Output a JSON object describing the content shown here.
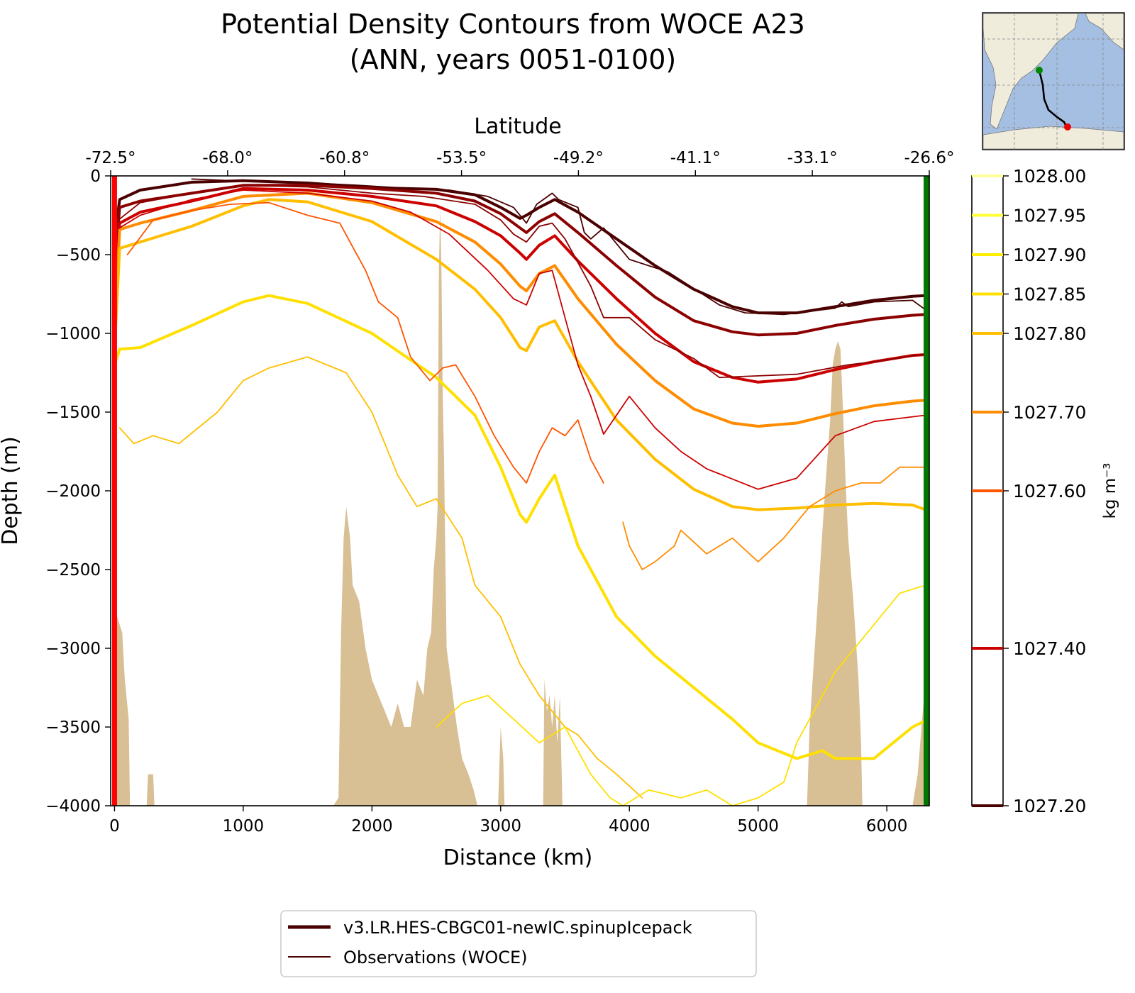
{
  "chart_data": {
    "type": "line",
    "title": "Potential Density Contours from WOCE A23",
    "subtitle": "(ANN, years 0051-0100)",
    "xlabel": "Distance (km)",
    "ylabel": "Depth (m)",
    "top_xlabel": "Latitude",
    "xlim": [
      -30,
      6330
    ],
    "ylim": [
      -4000,
      0
    ],
    "x_ticks": [
      0,
      1000,
      2000,
      3000,
      4000,
      5000,
      6000
    ],
    "y_ticks": [
      0,
      -500,
      -1000,
      -1500,
      -2000,
      -2500,
      -3000,
      -3500,
      -4000
    ],
    "x_tick_labels": [
      "0",
      "1000",
      "2000",
      "3000",
      "4000",
      "5000",
      "6000"
    ],
    "y_tick_labels": [
      "0",
      "−500",
      "−1000",
      "−1500",
      "−2000",
      "−2500",
      "−3000",
      "−3500",
      "−4000"
    ],
    "lat_ticks": [
      {
        "x": 0,
        "label": "-72.5°"
      },
      {
        "x": 900,
        "label": "-68.0°"
      },
      {
        "x": 1800,
        "label": "-60.8°"
      },
      {
        "x": 2700,
        "label": "-53.5°"
      },
      {
        "x": 3600,
        "label": "-49.2°"
      },
      {
        "x": 4500,
        "label": "-41.1°"
      },
      {
        "x": 5400,
        "label": "-33.1°"
      },
      {
        "x": 6300,
        "label": "-26.6°"
      }
    ],
    "colorbar": {
      "unit_label": "kg m⁻³",
      "ticks": [
        {
          "value": 1028.0,
          "label": "1028.00",
          "color": "#ffff99"
        },
        {
          "value": 1027.95,
          "label": "1027.95",
          "color": "#ffff33"
        },
        {
          "value": 1027.9,
          "label": "1027.90",
          "color": "#ffee00"
        },
        {
          "value": 1027.85,
          "label": "1027.85",
          "color": "#ffe000"
        },
        {
          "value": 1027.8,
          "label": "1027.80",
          "color": "#ffbf00"
        },
        {
          "value": 1027.7,
          "label": "1027.70",
          "color": "#ff8c00"
        },
        {
          "value": 1027.6,
          "label": "1027.60",
          "color": "#ff5500"
        },
        {
          "value": 1027.4,
          "label": "1027.40",
          "color": "#cc0000"
        },
        {
          "value": 1027.2,
          "label": "1027.20",
          "color": "#4a0000"
        }
      ]
    },
    "legend": {
      "placement": "bottom-center",
      "entries": [
        {
          "label": "v3.LR.HES-CBGC01-newIC.spinupIcepack",
          "style": "model",
          "color": "#4a0000"
        },
        {
          "label": "Observations (WOCE)",
          "style": "obs",
          "color": "#4a0000"
        }
      ]
    },
    "section_ends": {
      "start_color": "#ff0000",
      "end_color": "#007700"
    },
    "bathymetry": {
      "color": "#d8bf94",
      "x": [
        0,
        60,
        80,
        110,
        120,
        250,
        260,
        300,
        310,
        1700,
        1740,
        1760,
        1780,
        1800,
        1830,
        1850,
        1900,
        1950,
        2000,
        2050,
        2100,
        2150,
        2200,
        2250,
        2300,
        2350,
        2400,
        2430,
        2460,
        2480,
        2500,
        2510,
        2520,
        2530,
        2540,
        2550,
        2560,
        2580,
        2620,
        2660,
        2700,
        2750,
        2790,
        2820,
        2980,
        3000,
        3020,
        3030,
        3330,
        3340,
        3360,
        3380,
        3400,
        3420,
        3440,
        3460,
        3480,
        5380,
        5400,
        5440,
        5480,
        5520,
        5560,
        5580,
        5600,
        5620,
        5640,
        5660,
        5680,
        5700,
        5740,
        5780,
        5800,
        5810,
        6200,
        6240,
        6270,
        6290
      ],
      "y": [
        -2750,
        -2900,
        -3200,
        -3450,
        -4000,
        -4000,
        -3800,
        -3800,
        -4000,
        -4000,
        -3950,
        -2900,
        -2300,
        -2100,
        -2300,
        -2600,
        -2700,
        -3000,
        -3200,
        -3300,
        -3400,
        -3500,
        -3350,
        -3500,
        -3500,
        -3200,
        -3300,
        -3000,
        -2900,
        -2500,
        -2300,
        -2100,
        -600,
        -200,
        -600,
        -1400,
        -1800,
        -3000,
        -3250,
        -3500,
        -3700,
        -3800,
        -3900,
        -4000,
        -4000,
        -3500,
        -3700,
        -4000,
        -4000,
        -3200,
        -3400,
        -3300,
        -3500,
        -3300,
        -3600,
        -3300,
        -4000,
        -4000,
        -3500,
        -3000,
        -2500,
        -2000,
        -1550,
        -1200,
        -1100,
        -1050,
        -1100,
        -1500,
        -1950,
        -2300,
        -2700,
        -3200,
        -3600,
        -4000,
        -4000,
        -3800,
        -3500,
        -3300
      ]
    },
    "series": [
      {
        "style": "model",
        "color": "#4a0000",
        "density": 1027.2,
        "x": [
          0,
          40,
          200,
          600,
          1000,
          1500,
          2000,
          2500,
          2800,
          3000,
          3150,
          3200,
          3300,
          3420,
          3600,
          3900,
          4200,
          4500,
          4800,
          5000,
          5300,
          5600,
          5900,
          6200,
          6300
        ],
        "y": [
          -400,
          -150,
          -90,
          -40,
          -30,
          -45,
          -75,
          -85,
          -120,
          -200,
          -270,
          -250,
          -200,
          -150,
          -230,
          -400,
          -570,
          -720,
          -830,
          -870,
          -870,
          -830,
          -790,
          -765,
          -760
        ]
      },
      {
        "style": "model",
        "color": "#8b0000",
        "density": 1027.3,
        "x": [
          0,
          40,
          200,
          600,
          1000,
          1500,
          2000,
          2500,
          2800,
          3000,
          3150,
          3200,
          3300,
          3420,
          3600,
          3900,
          4200,
          4500,
          4800,
          5000,
          5300,
          5600,
          5900,
          6200,
          6300
        ],
        "y": [
          -600,
          -200,
          -160,
          -110,
          -60,
          -60,
          -80,
          -110,
          -160,
          -240,
          -330,
          -360,
          -290,
          -240,
          -360,
          -570,
          -770,
          -920,
          -990,
          -1010,
          -1000,
          -950,
          -910,
          -885,
          -880
        ]
      },
      {
        "style": "model",
        "color": "#cc0000",
        "density": 1027.4,
        "x": [
          0,
          40,
          200,
          600,
          1000,
          1500,
          2000,
          2500,
          2800,
          3000,
          3150,
          3200,
          3300,
          3420,
          3600,
          3900,
          4200,
          4500,
          4800,
          5000,
          5300,
          5600,
          5900,
          6200,
          6300
        ],
        "y": [
          -800,
          -300,
          -230,
          -160,
          -80,
          -90,
          -130,
          -190,
          -290,
          -380,
          -490,
          -530,
          -440,
          -380,
          -540,
          -780,
          -1000,
          -1180,
          -1280,
          -1310,
          -1290,
          -1230,
          -1180,
          -1140,
          -1135
        ]
      },
      {
        "style": "model",
        "color": "#ff8c00",
        "density": 1027.7,
        "x": [
          0,
          40,
          200,
          600,
          1000,
          1500,
          2000,
          2500,
          2800,
          3000,
          3150,
          3200,
          3300,
          3420,
          3600,
          3900,
          4200,
          4500,
          4800,
          5000,
          5300,
          5600,
          5900,
          6200,
          6300
        ],
        "y": [
          -1000,
          -340,
          -300,
          -220,
          -130,
          -110,
          -170,
          -290,
          -420,
          -560,
          -700,
          -730,
          -620,
          -570,
          -780,
          -1070,
          -1300,
          -1480,
          -1570,
          -1590,
          -1570,
          -1510,
          -1460,
          -1430,
          -1425
        ]
      },
      {
        "style": "model",
        "color": "#ffbf00",
        "density": 1027.8,
        "x": [
          0,
          40,
          200,
          600,
          1000,
          1200,
          1500,
          2000,
          2500,
          2800,
          3000,
          3150,
          3200,
          3300,
          3420,
          3600,
          3900,
          4200,
          4500,
          4800,
          5000,
          5300,
          5600,
          5900,
          6200,
          6300
        ],
        "y": [
          -1100,
          -460,
          -420,
          -320,
          -190,
          -150,
          -165,
          -290,
          -530,
          -720,
          -900,
          -1090,
          -1110,
          -960,
          -920,
          -1180,
          -1550,
          -1800,
          -1990,
          -2100,
          -2120,
          -2110,
          -2090,
          -2080,
          -2090,
          -2120
        ]
      },
      {
        "style": "model",
        "color": "#ffe000",
        "density": 1027.85,
        "x": [
          0,
          40,
          200,
          600,
          1000,
          1200,
          1500,
          2000,
          2500,
          2800,
          3000,
          3150,
          3200,
          3300,
          3420,
          3600,
          3900,
          4200,
          4500,
          4800,
          5000,
          5300,
          5500,
          5600,
          5900,
          6200,
          6300
        ],
        "y": [
          -1200,
          -1100,
          -1090,
          -950,
          -800,
          -760,
          -810,
          -1000,
          -1280,
          -1520,
          -1850,
          -2150,
          -2200,
          -2050,
          -1900,
          -2350,
          -2800,
          -3050,
          -3250,
          -3450,
          -3600,
          -3700,
          -3650,
          -3700,
          -3700,
          -3500,
          -3460
        ]
      },
      {
        "style": "obs",
        "color": "#4a0000",
        "density": 1027.2,
        "x": [
          600,
          900,
          1400,
          1900,
          2300,
          2600,
          2900,
          3100,
          3200,
          3280,
          3400,
          3450,
          3600,
          3650,
          3700,
          3800,
          4000,
          4300,
          4700,
          4900,
          5200,
          5600,
          5650,
          5700,
          5900,
          6200,
          6300
        ],
        "y": [
          -20,
          -30,
          -40,
          -60,
          -80,
          -90,
          -130,
          -200,
          -300,
          -180,
          -110,
          -150,
          -200,
          -360,
          -400,
          -330,
          -530,
          -610,
          -820,
          -870,
          -880,
          -840,
          -800,
          -830,
          -800,
          -790,
          -850
        ]
      },
      {
        "style": "obs",
        "color": "#8b0000",
        "density": 1027.3,
        "x": [
          0,
          200,
          600,
          1000,
          1500,
          2000,
          2400,
          2800,
          3000,
          3100,
          3200,
          3300,
          3400,
          3500,
          3600,
          3700,
          3800,
          4000,
          4200,
          4500,
          4700,
          5000,
          5300,
          5700,
          5900,
          6300
        ],
        "y": [
          -300,
          -170,
          -110,
          -60,
          -70,
          -110,
          -130,
          -180,
          -280,
          -370,
          -420,
          -320,
          -300,
          -400,
          -550,
          -700,
          -900,
          -900,
          -1040,
          -1160,
          -1280,
          -1270,
          -1260,
          -1200,
          -1180,
          -1130
        ]
      },
      {
        "style": "obs",
        "color": "#cc0000",
        "density": 1027.4,
        "x": [
          0,
          200,
          600,
          1000,
          1500,
          2000,
          2300,
          2600,
          2900,
          3100,
          3200,
          3300,
          3400,
          3500,
          3600,
          3700,
          3800,
          4000,
          4200,
          4400,
          4600,
          5000,
          5300,
          5600,
          5900,
          6300
        ],
        "y": [
          -350,
          -250,
          -150,
          -90,
          -110,
          -160,
          -230,
          -370,
          -600,
          -780,
          -820,
          -620,
          -600,
          -900,
          -1200,
          -1400,
          -1640,
          -1400,
          -1600,
          -1750,
          -1860,
          -1990,
          -1920,
          -1650,
          -1560,
          -1520
        ]
      },
      {
        "style": "obs",
        "color": "#ff5500",
        "density": 1027.6,
        "x": [
          100,
          300,
          600,
          900,
          1200,
          1500,
          1750,
          1850,
          1950,
          2050,
          2200,
          2300,
          2450,
          2550,
          2650,
          2800,
          2950,
          3100,
          3200,
          3300,
          3400,
          3500,
          3600,
          3700,
          3800
        ],
        "y": [
          -500,
          -280,
          -220,
          -180,
          -170,
          -250,
          -300,
          -450,
          -600,
          -800,
          -900,
          -1150,
          -1300,
          -1220,
          -1200,
          -1400,
          -1650,
          -1850,
          -1950,
          -1750,
          -1600,
          -1650,
          -1550,
          -1800,
          -1950
        ]
      },
      {
        "style": "obs",
        "color": "#ff8c00",
        "density": 1027.7,
        "x": [
          3950,
          4000,
          4100,
          4200,
          4350,
          4400,
          4600,
          4800,
          5000,
          5200,
          5400,
          5600,
          5800,
          5950,
          6100,
          6300
        ],
        "y": [
          -2200,
          -2350,
          -2500,
          -2450,
          -2350,
          -2250,
          -2400,
          -2300,
          -2450,
          -2300,
          -2100,
          -2000,
          -1950,
          -1950,
          -1850,
          -1850
        ]
      },
      {
        "style": "obs",
        "color": "#ffbf00",
        "density": 1027.8,
        "x": [
          40,
          150,
          300,
          500,
          800,
          1000,
          1200,
          1500,
          1800,
          2000,
          2100,
          2200,
          2350,
          2500,
          2700,
          2800,
          3000,
          3150,
          3300,
          3500,
          3600,
          3750,
          3900,
          4100
        ],
        "y": [
          -1600,
          -1700,
          -1650,
          -1700,
          -1500,
          -1300,
          -1220,
          -1150,
          -1250,
          -1500,
          -1700,
          -1900,
          -2100,
          -2050,
          -2300,
          -2600,
          -2800,
          -3100,
          -3300,
          -3500,
          -3550,
          -3700,
          -3800,
          -3950
        ]
      },
      {
        "style": "obs",
        "color": "#ffe000",
        "density": 1027.85,
        "x": [
          2500,
          2700,
          2900,
          3100,
          3300,
          3500,
          3700,
          3850,
          3950,
          4150,
          4400,
          4600,
          4800,
          5000,
          5200,
          5300,
          5600,
          5900,
          6100,
          6300
        ],
        "y": [
          -3500,
          -3350,
          -3300,
          -3450,
          -3600,
          -3500,
          -3800,
          -3950,
          -4000,
          -3900,
          -3950,
          -3900,
          -4000,
          -3950,
          -3850,
          -3600,
          -3150,
          -2850,
          -2650,
          -2600
        ]
      }
    ]
  }
}
